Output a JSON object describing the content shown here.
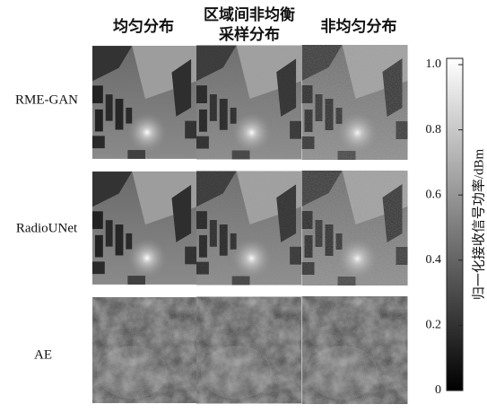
{
  "column_headers": [
    [
      "均匀分布"
    ],
    [
      "区域间非均衡",
      "采样分布"
    ],
    [
      "非均匀分布"
    ]
  ],
  "row_labels": [
    "RME-GAN",
    "RadioUNet",
    "AE"
  ],
  "colorbar": {
    "label": "归一化接收信号功率/dBm",
    "range": [
      0,
      1
    ],
    "ticks": [
      0,
      0.2,
      0.4,
      0.6,
      0.8,
      {
        "value": 1,
        "label": "1.0"
      }
    ]
  }
}
